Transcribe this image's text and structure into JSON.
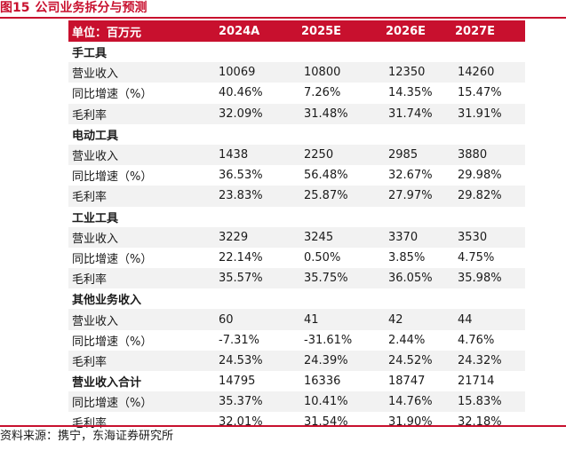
{
  "figure": {
    "number": "图15",
    "title": "公司业务拆分与预测"
  },
  "table": {
    "header": [
      "单位：百万元",
      "2024A",
      "2025E",
      "2026E",
      "2027E"
    ],
    "rows": [
      {
        "label": "手工具",
        "section": true,
        "values": [
          "",
          "",
          "",
          ""
        ]
      },
      {
        "label": "营业收入",
        "section": false,
        "values": [
          "10069",
          "10800",
          "12350",
          "14260"
        ]
      },
      {
        "label": "同比增速（%）",
        "section": false,
        "values": [
          "40.46%",
          "7.26%",
          "14.35%",
          "15.47%"
        ]
      },
      {
        "label": "毛利率",
        "section": false,
        "values": [
          "32.09%",
          "31.48%",
          "31.74%",
          "31.91%"
        ]
      },
      {
        "label": "电动工具",
        "section": true,
        "values": [
          "",
          "",
          "",
          ""
        ]
      },
      {
        "label": "营业收入",
        "section": false,
        "values": [
          "1438",
          "2250",
          "2985",
          "3880"
        ]
      },
      {
        "label": "同比增速（%）",
        "section": false,
        "values": [
          "36.53%",
          "56.48%",
          "32.67%",
          "29.98%"
        ]
      },
      {
        "label": "毛利率",
        "section": false,
        "values": [
          "23.83%",
          "25.87%",
          "27.97%",
          "29.82%"
        ]
      },
      {
        "label": "工业工具",
        "section": true,
        "values": [
          "",
          "",
          "",
          ""
        ]
      },
      {
        "label": "营业收入",
        "section": false,
        "values": [
          "3229",
          "3245",
          "3370",
          "3530"
        ]
      },
      {
        "label": "同比增速（%）",
        "section": false,
        "values": [
          "22.14%",
          "0.50%",
          "3.85%",
          "4.75%"
        ]
      },
      {
        "label": "毛利率",
        "section": false,
        "values": [
          "35.57%",
          "35.75%",
          "36.05%",
          "35.98%"
        ]
      },
      {
        "label": "其他业务收入",
        "section": true,
        "values": [
          "",
          "",
          "",
          ""
        ]
      },
      {
        "label": "营业收入",
        "section": false,
        "values": [
          "60",
          "41",
          "42",
          "44"
        ]
      },
      {
        "label": "同比增速（%）",
        "section": false,
        "values": [
          "-7.31%",
          "-31.61%",
          "2.44%",
          "4.76%"
        ]
      },
      {
        "label": "毛利率",
        "section": false,
        "values": [
          "24.53%",
          "24.39%",
          "24.52%",
          "24.32%"
        ]
      },
      {
        "label": "营业收入合计",
        "section": true,
        "values": [
          "14795",
          "16336",
          "18747",
          "21714"
        ]
      },
      {
        "label": "同比增速（%）",
        "section": false,
        "values": [
          "35.37%",
          "10.41%",
          "14.76%",
          "15.83%"
        ]
      },
      {
        "label": "毛利率",
        "section": false,
        "values": [
          "32.01%",
          "31.54%",
          "31.90%",
          "32.18%"
        ]
      }
    ]
  },
  "footer": {
    "source": "资料来源：携宁，东海证券研究所"
  },
  "colors": {
    "accent": "#c8102e",
    "alt_row": "#f2f2f2"
  }
}
